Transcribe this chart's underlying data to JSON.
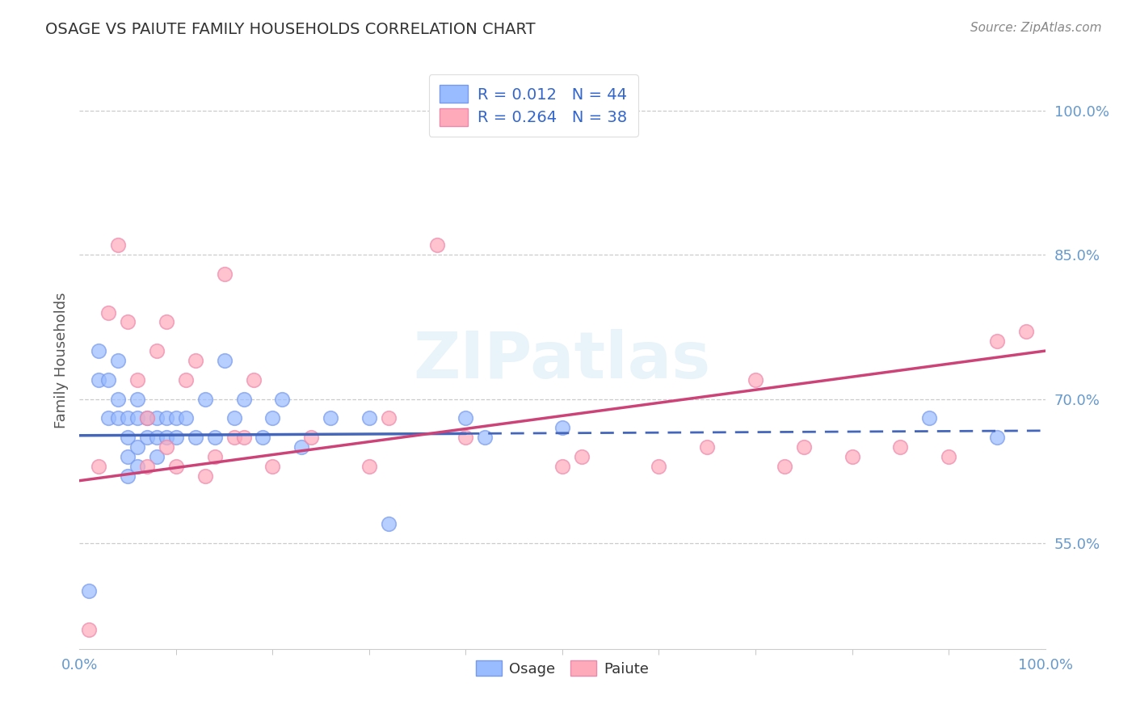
{
  "title": "OSAGE VS PAIUTE FAMILY HOUSEHOLDS CORRELATION CHART",
  "source": "Source: ZipAtlas.com",
  "ylabel": "Family Households",
  "xlim": [
    0,
    1
  ],
  "ylim": [
    0.44,
    1.04
  ],
  "xticks": [
    0.0,
    1.0
  ],
  "xticklabels": [
    "0.0%",
    "100.0%"
  ],
  "ytick_positions": [
    0.55,
    0.7,
    0.85,
    1.0
  ],
  "ytick_labels": [
    "55.0%",
    "70.0%",
    "85.0%",
    "100.0%"
  ],
  "tick_color": "#6699cc",
  "osage_color": "#99bbff",
  "paiute_color": "#ffaabb",
  "osage_edge_color": "#7799ee",
  "paiute_edge_color": "#ee88aa",
  "osage_line_color": "#4466bb",
  "paiute_line_color": "#cc4477",
  "background_color": "#ffffff",
  "watermark": "ZIPatlas",
  "R_osage": 0.012,
  "N_osage": 44,
  "R_paiute": 0.264,
  "N_paiute": 38,
  "osage_intercept": 0.662,
  "osage_slope": 0.005,
  "paiute_intercept": 0.615,
  "paiute_slope": 0.135,
  "osage_line_solid_end": 0.4,
  "osage_x": [
    0.01,
    0.02,
    0.02,
    0.03,
    0.03,
    0.04,
    0.04,
    0.04,
    0.05,
    0.05,
    0.05,
    0.05,
    0.06,
    0.06,
    0.06,
    0.06,
    0.07,
    0.07,
    0.08,
    0.08,
    0.08,
    0.09,
    0.09,
    0.1,
    0.1,
    0.11,
    0.12,
    0.13,
    0.14,
    0.15,
    0.16,
    0.17,
    0.19,
    0.2,
    0.21,
    0.23,
    0.26,
    0.3,
    0.32,
    0.4,
    0.42,
    0.5,
    0.88,
    0.95
  ],
  "osage_y": [
    0.5,
    0.72,
    0.75,
    0.68,
    0.72,
    0.68,
    0.7,
    0.74,
    0.62,
    0.64,
    0.66,
    0.68,
    0.63,
    0.65,
    0.68,
    0.7,
    0.66,
    0.68,
    0.64,
    0.66,
    0.68,
    0.66,
    0.68,
    0.66,
    0.68,
    0.68,
    0.66,
    0.7,
    0.66,
    0.74,
    0.68,
    0.7,
    0.66,
    0.68,
    0.7,
    0.65,
    0.68,
    0.68,
    0.57,
    0.68,
    0.66,
    0.67,
    0.68,
    0.66
  ],
  "paiute_x": [
    0.01,
    0.02,
    0.03,
    0.04,
    0.05,
    0.06,
    0.07,
    0.07,
    0.08,
    0.09,
    0.09,
    0.1,
    0.11,
    0.12,
    0.13,
    0.14,
    0.15,
    0.16,
    0.17,
    0.18,
    0.2,
    0.24,
    0.3,
    0.32,
    0.37,
    0.4,
    0.5,
    0.52,
    0.6,
    0.65,
    0.7,
    0.73,
    0.75,
    0.8,
    0.85,
    0.9,
    0.95,
    0.98
  ],
  "paiute_y": [
    0.46,
    0.63,
    0.79,
    0.86,
    0.78,
    0.72,
    0.63,
    0.68,
    0.75,
    0.78,
    0.65,
    0.63,
    0.72,
    0.74,
    0.62,
    0.64,
    0.83,
    0.66,
    0.66,
    0.72,
    0.63,
    0.66,
    0.63,
    0.68,
    0.86,
    0.66,
    0.63,
    0.64,
    0.63,
    0.65,
    0.72,
    0.63,
    0.65,
    0.64,
    0.65,
    0.64,
    0.76,
    0.77
  ]
}
